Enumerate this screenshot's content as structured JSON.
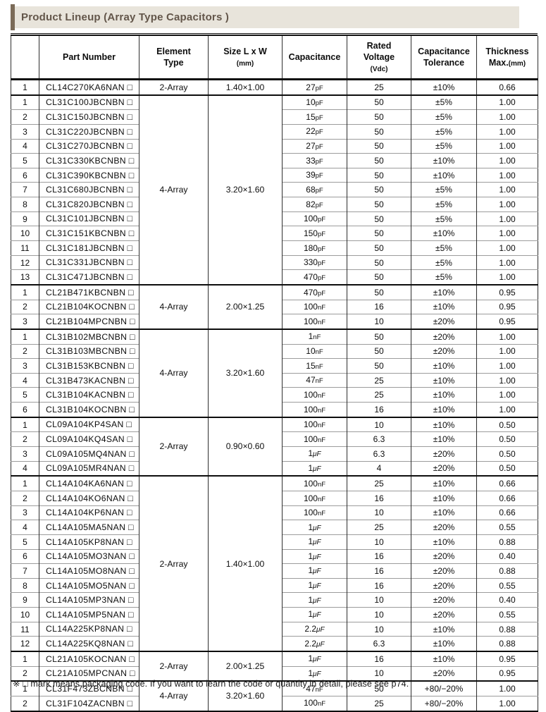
{
  "page": {
    "title": "Product Lineup (Array Type Capacitors )",
    "footnote": "※ □ mark means packaging code. If you want to learn the code or quantity in detail, please see p74."
  },
  "colors": {
    "accent_bar": "#7b6b58",
    "title_strip_bg": "#e8e4db",
    "title_text": "#63564a",
    "group_rule": "#0d0d0d",
    "row_rule": "#9c9c9c"
  },
  "table": {
    "columns": [
      {
        "name": "row-number",
        "label_lines": []
      },
      {
        "name": "part-number",
        "label_lines": [
          {
            "text": "Part Number"
          }
        ]
      },
      {
        "name": "element-type",
        "label_lines": [
          {
            "text": "Element"
          },
          {
            "text": "Type"
          }
        ]
      },
      {
        "name": "size",
        "label_lines": [
          {
            "text": "Size L x W"
          },
          {
            "text": "(mm)",
            "small": true
          }
        ]
      },
      {
        "name": "capacitance",
        "label_lines": [
          {
            "text": "Capacitance"
          }
        ]
      },
      {
        "name": "rated-voltage",
        "label_lines": [
          {
            "text": "Rated"
          },
          {
            "text": "Voltage"
          },
          {
            "text": "(Vdc)",
            "small": true
          }
        ]
      },
      {
        "name": "capacitance-tolerance",
        "label_lines": [
          {
            "text": "Capacitance"
          },
          {
            "text": "Tolerance"
          }
        ]
      },
      {
        "name": "thickness",
        "label_lines": [
          {
            "text": "Thickness"
          },
          {
            "text": "Max.",
            "suffix_small": "(mm)"
          }
        ]
      }
    ],
    "groups": [
      {
        "element": "2-Array",
        "size": "1.40×1.00",
        "rows": [
          {
            "no": "1",
            "part": "CL14C270KA6NAN □",
            "cap": "27pF",
            "v": "25",
            "tol": "±10%",
            "th": "0.66"
          }
        ]
      },
      {
        "element": "4-Array",
        "size": "3.20×1.60",
        "rows": [
          {
            "no": "1",
            "part": "CL31C100JBCNBN □",
            "cap": "10pF",
            "v": "50",
            "tol": "±5%",
            "th": "1.00"
          },
          {
            "no": "2",
            "part": "CL31C150JBCNBN □",
            "cap": "15pF",
            "v": "50",
            "tol": "±5%",
            "th": "1.00"
          },
          {
            "no": "3",
            "part": "CL31C220JBCNBN □",
            "cap": "22pF",
            "v": "50",
            "tol": "±5%",
            "th": "1.00"
          },
          {
            "no": "4",
            "part": "CL31C270JBCNBN □",
            "cap": "27pF",
            "v": "50",
            "tol": "±5%",
            "th": "1.00"
          },
          {
            "no": "5",
            "part": "CL31C330KBCNBN □",
            "cap": "33pF",
            "v": "50",
            "tol": "±10%",
            "th": "1.00"
          },
          {
            "no": "6",
            "part": "CL31C390KBCNBN □",
            "cap": "39pF",
            "v": "50",
            "tol": "±10%",
            "th": "1.00"
          },
          {
            "no": "7",
            "part": "CL31C680JBCNBN □",
            "cap": "68pF",
            "v": "50",
            "tol": "±5%",
            "th": "1.00"
          },
          {
            "no": "8",
            "part": "CL31C820JBCNBN □",
            "cap": "82pF",
            "v": "50",
            "tol": "±5%",
            "th": "1.00"
          },
          {
            "no": "9",
            "part": "CL31C101JBCNBN □",
            "cap": "100pF",
            "v": "50",
            "tol": "±5%",
            "th": "1.00"
          },
          {
            "no": "10",
            "part": "CL31C151KBCNBN □",
            "cap": "150pF",
            "v": "50",
            "tol": "±10%",
            "th": "1.00"
          },
          {
            "no": "11",
            "part": "CL31C181JBCNBN □",
            "cap": "180pF",
            "v": "50",
            "tol": "±5%",
            "th": "1.00"
          },
          {
            "no": "12",
            "part": "CL31C331JBCNBN □",
            "cap": "330pF",
            "v": "50",
            "tol": "±5%",
            "th": "1.00"
          },
          {
            "no": "13",
            "part": "CL31C471JBCNBN □",
            "cap": "470pF",
            "v": "50",
            "tol": "±5%",
            "th": "1.00"
          }
        ]
      },
      {
        "element": "4-Array",
        "size": "2.00×1.25",
        "rows": [
          {
            "no": "1",
            "part": "CL21B471KBCNBN □",
            "cap": "470pF",
            "v": "50",
            "tol": "±10%",
            "th": "0.95"
          },
          {
            "no": "2",
            "part": "CL21B104KOCNBN □",
            "cap": "100nF",
            "v": "16",
            "tol": "±10%",
            "th": "0.95"
          },
          {
            "no": "3",
            "part": "CL21B104MPCNBN □",
            "cap": "100nF",
            "v": "10",
            "tol": "±20%",
            "th": "0.95"
          }
        ]
      },
      {
        "element": "4-Array",
        "size": "3.20×1.60",
        "rows": [
          {
            "no": "1",
            "part": "CL31B102MBCNBN □",
            "cap": "1nF",
            "v": "50",
            "tol": "±20%",
            "th": "1.00"
          },
          {
            "no": "2",
            "part": "CL31B103MBCNBN □",
            "cap": "10nF",
            "v": "50",
            "tol": "±20%",
            "th": "1.00"
          },
          {
            "no": "3",
            "part": "CL31B153KBCNBN □",
            "cap": "15nF",
            "v": "50",
            "tol": "±10%",
            "th": "1.00"
          },
          {
            "no": "4",
            "part": "CL31B473KACNBN □",
            "cap": "47nF",
            "v": "25",
            "tol": "±10%",
            "th": "1.00"
          },
          {
            "no": "5",
            "part": "CL31B104KACNBN □",
            "cap": "100nF",
            "v": "25",
            "tol": "±10%",
            "th": "1.00"
          },
          {
            "no": "6",
            "part": "CL31B104KOCNBN □",
            "cap": "100nF",
            "v": "16",
            "tol": "±10%",
            "th": "1.00"
          }
        ]
      },
      {
        "element": "2-Array",
        "size": "0.90×0.60",
        "rows": [
          {
            "no": "1",
            "part": "CL09A104KP4SAN □",
            "cap": "100nF",
            "v": "10",
            "tol": "±10%",
            "th": "0.50"
          },
          {
            "no": "2",
            "part": "CL09A104KQ4SAN □",
            "cap": "100nF",
            "v": "6.3",
            "tol": "±10%",
            "th": "0.50"
          },
          {
            "no": "3",
            "part": "CL09A105MQ4NAN □",
            "cap": "1μF",
            "v": "6.3",
            "tol": "±20%",
            "th": "0.50"
          },
          {
            "no": "4",
            "part": "CL09A105MR4NAN □",
            "cap": "1μF",
            "v": "4",
            "tol": "±20%",
            "th": "0.50"
          }
        ]
      },
      {
        "element": "2-Array",
        "size": "1.40×1.00",
        "rows": [
          {
            "no": "1",
            "part": "CL14A104KA6NAN □",
            "cap": "100nF",
            "v": "25",
            "tol": "±10%",
            "th": "0.66"
          },
          {
            "no": "2",
            "part": "CL14A104KO6NAN □",
            "cap": "100nF",
            "v": "16",
            "tol": "±10%",
            "th": "0.66"
          },
          {
            "no": "3",
            "part": "CL14A104KP6NAN □",
            "cap": "100nF",
            "v": "10",
            "tol": "±10%",
            "th": "0.66"
          },
          {
            "no": "4",
            "part": "CL14A105MA5NAN □",
            "cap": "1μF",
            "v": "25",
            "tol": "±20%",
            "th": "0.55"
          },
          {
            "no": "5",
            "part": "CL14A105KP8NAN □",
            "cap": "1μF",
            "v": "10",
            "tol": "±10%",
            "th": "0.88"
          },
          {
            "no": "6",
            "part": "CL14A105MO3NAN □",
            "cap": "1μF",
            "v": "16",
            "tol": "±20%",
            "th": "0.40"
          },
          {
            "no": "7",
            "part": "CL14A105MO8NAN □",
            "cap": "1μF",
            "v": "16",
            "tol": "±20%",
            "th": "0.88"
          },
          {
            "no": "8",
            "part": "CL14A105MO5NAN □",
            "cap": "1μF",
            "v": "16",
            "tol": "±20%",
            "th": "0.55"
          },
          {
            "no": "9",
            "part": "CL14A105MP3NAN □",
            "cap": "1μF",
            "v": "10",
            "tol": "±20%",
            "th": "0.40"
          },
          {
            "no": "10",
            "part": "CL14A105MP5NAN □",
            "cap": "1μF",
            "v": "10",
            "tol": "±20%",
            "th": "0.55"
          },
          {
            "no": "11",
            "part": "CL14A225KP8NAN □",
            "cap": "2.2μF",
            "v": "10",
            "tol": "±10%",
            "th": "0.88"
          },
          {
            "no": "12",
            "part": "CL14A225KQ8NAN □",
            "cap": "2.2μF",
            "v": "6.3",
            "tol": "±10%",
            "th": "0.88"
          }
        ]
      },
      {
        "element": "2-Array",
        "size": "2.00×1.25",
        "rows": [
          {
            "no": "1",
            "part": "CL21A105KOCNAN □",
            "cap": "1μF",
            "v": "16",
            "tol": "±10%",
            "th": "0.95"
          },
          {
            "no": "2",
            "part": "CL21A105MPCNAN □",
            "cap": "1μF",
            "v": "10",
            "tol": "±20%",
            "th": "0.95"
          }
        ]
      },
      {
        "element": "4-Array",
        "size": "3.20×1.60",
        "rows": [
          {
            "no": "1",
            "part": "CL31F473ZBCNBN □",
            "cap": "47nF",
            "v": "50",
            "tol": "+80/−20%",
            "th": "1.00"
          },
          {
            "no": "2",
            "part": "CL31F104ZACNBN □",
            "cap": "100nF",
            "v": "25",
            "tol": "+80/−20%",
            "th": "1.00"
          }
        ]
      }
    ]
  }
}
